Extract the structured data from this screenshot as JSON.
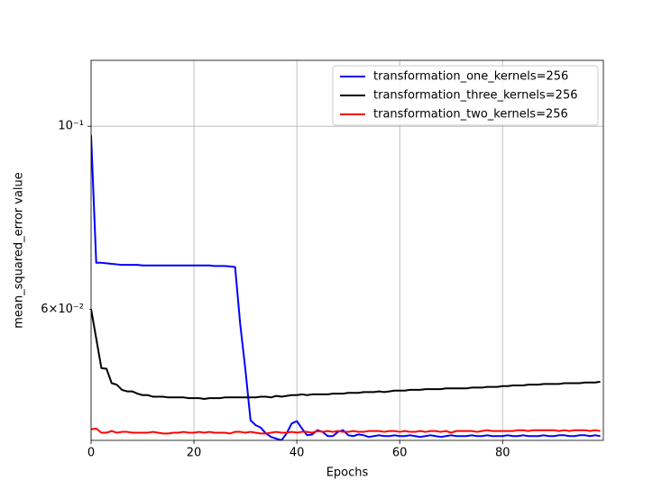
{
  "chart_data": {
    "type": "line",
    "xlabel": "Epochs",
    "ylabel": "mean_squared_error value",
    "x": [
      0,
      1,
      2,
      3,
      4,
      5,
      6,
      7,
      8,
      9,
      10,
      11,
      12,
      13,
      14,
      15,
      16,
      17,
      18,
      19,
      20,
      21,
      22,
      23,
      24,
      25,
      26,
      27,
      28,
      29,
      30,
      31,
      32,
      33,
      34,
      35,
      36,
      37,
      38,
      39,
      40,
      41,
      42,
      43,
      44,
      45,
      46,
      47,
      48,
      49,
      50,
      51,
      52,
      53,
      54,
      55,
      56,
      57,
      58,
      59,
      60,
      61,
      62,
      63,
      64,
      65,
      66,
      67,
      68,
      69,
      70,
      71,
      72,
      73,
      74,
      75,
      76,
      77,
      78,
      79,
      80,
      81,
      82,
      83,
      84,
      85,
      86,
      87,
      88,
      89,
      90,
      91,
      92,
      93,
      94,
      95,
      96,
      97,
      98,
      99
    ],
    "series": [
      {
        "name": "transformation_one_kernels=256",
        "color": "#0000ff",
        "values": [
          0.0975,
          0.0683,
          0.0683,
          0.0682,
          0.0681,
          0.068,
          0.0679,
          0.0679,
          0.0679,
          0.0679,
          0.0678,
          0.0678,
          0.0678,
          0.0678,
          0.0678,
          0.0678,
          0.0678,
          0.0678,
          0.0678,
          0.0678,
          0.0678,
          0.0678,
          0.0678,
          0.0678,
          0.0677,
          0.0677,
          0.0677,
          0.0676,
          0.0675,
          0.0575,
          0.0507,
          0.044,
          0.0434,
          0.0431,
          0.0424,
          0.042,
          0.0418,
          0.0416,
          0.0424,
          0.0436,
          0.0439,
          0.043,
          0.0422,
          0.0423,
          0.0428,
          0.0426,
          0.0421,
          0.0421,
          0.0426,
          0.0428,
          0.0422,
          0.0421,
          0.0423,
          0.0422,
          0.042,
          0.0421,
          0.0422,
          0.0421,
          0.0421,
          0.0422,
          0.0421,
          0.0421,
          0.0422,
          0.0421,
          0.042,
          0.0421,
          0.0422,
          0.0421,
          0.042,
          0.0421,
          0.0422,
          0.0421,
          0.0421,
          0.0421,
          0.0422,
          0.0421,
          0.0421,
          0.0422,
          0.0421,
          0.0421,
          0.0421,
          0.0422,
          0.0421,
          0.0421,
          0.0422,
          0.0421,
          0.0421,
          0.0421,
          0.0422,
          0.0421,
          0.0421,
          0.0422,
          0.0422,
          0.0421,
          0.0421,
          0.0422,
          0.0422,
          0.0421,
          0.0422,
          0.0421
        ]
      },
      {
        "name": "transformation_three_kernels=256",
        "color": "#000000",
        "values": [
          0.06,
          0.0553,
          0.0509,
          0.0508,
          0.0488,
          0.0486,
          0.0479,
          0.0477,
          0.0477,
          0.0474,
          0.0472,
          0.0472,
          0.047,
          0.047,
          0.047,
          0.0469,
          0.0469,
          0.0469,
          0.0469,
          0.0468,
          0.0468,
          0.0468,
          0.0467,
          0.0468,
          0.0468,
          0.0468,
          0.0469,
          0.0469,
          0.0469,
          0.0469,
          0.0469,
          0.0469,
          0.0469,
          0.047,
          0.047,
          0.0469,
          0.0471,
          0.047,
          0.0471,
          0.0472,
          0.0472,
          0.0473,
          0.0472,
          0.0473,
          0.0473,
          0.0473,
          0.0473,
          0.0474,
          0.0474,
          0.0474,
          0.0475,
          0.0475,
          0.0475,
          0.0476,
          0.0476,
          0.0476,
          0.0477,
          0.0476,
          0.0477,
          0.0478,
          0.0478,
          0.0478,
          0.0479,
          0.0479,
          0.0479,
          0.048,
          0.048,
          0.048,
          0.048,
          0.0481,
          0.0481,
          0.0481,
          0.0481,
          0.0481,
          0.0482,
          0.0482,
          0.0482,
          0.0483,
          0.0483,
          0.0483,
          0.0484,
          0.0484,
          0.0485,
          0.0485,
          0.0485,
          0.0486,
          0.0486,
          0.0486,
          0.0487,
          0.0487,
          0.0487,
          0.0487,
          0.0488,
          0.0488,
          0.0488,
          0.0488,
          0.0489,
          0.0489,
          0.0489,
          0.049
        ]
      },
      {
        "name": "transformation_two_kernels=256",
        "color": "#ff0000",
        "values": [
          0.0429,
          0.043,
          0.0425,
          0.0425,
          0.0427,
          0.0425,
          0.0426,
          0.0426,
          0.0425,
          0.0425,
          0.0425,
          0.0425,
          0.0426,
          0.0425,
          0.0424,
          0.0424,
          0.0425,
          0.0425,
          0.0426,
          0.0425,
          0.0425,
          0.0426,
          0.0425,
          0.0426,
          0.0425,
          0.0425,
          0.0425,
          0.0424,
          0.0426,
          0.0426,
          0.0425,
          0.0426,
          0.0425,
          0.0424,
          0.0424,
          0.0425,
          0.0426,
          0.0425,
          0.0425,
          0.0426,
          0.0425,
          0.0426,
          0.0426,
          0.0425,
          0.0427,
          0.0426,
          0.0427,
          0.0426,
          0.0427,
          0.0426,
          0.0426,
          0.0427,
          0.0426,
          0.0426,
          0.0427,
          0.0427,
          0.0427,
          0.0426,
          0.0427,
          0.0427,
          0.0426,
          0.0427,
          0.0426,
          0.0426,
          0.0427,
          0.0426,
          0.0427,
          0.0427,
          0.0426,
          0.0427,
          0.0425,
          0.0427,
          0.0427,
          0.0427,
          0.0427,
          0.0426,
          0.0427,
          0.0428,
          0.0427,
          0.0427,
          0.0427,
          0.0427,
          0.0427,
          0.0428,
          0.0428,
          0.0427,
          0.0428,
          0.0428,
          0.0428,
          0.0428,
          0.0428,
          0.0427,
          0.0428,
          0.0427,
          0.0428,
          0.0428,
          0.0428,
          0.0427,
          0.0428,
          0.0427
        ]
      }
    ],
    "xlim": [
      0,
      99.6
    ],
    "xticks": [
      0,
      20,
      40,
      60,
      80
    ],
    "ylim": [
      0.0416,
      0.1202
    ],
    "ylog": true,
    "yticks": [
      {
        "value": 0.1,
        "label": "10⁻¹"
      }
    ],
    "minor_yticks": [
      {
        "value": 0.06,
        "label": "6×10⁻²"
      }
    ],
    "grid": true,
    "legend": "upper right"
  }
}
